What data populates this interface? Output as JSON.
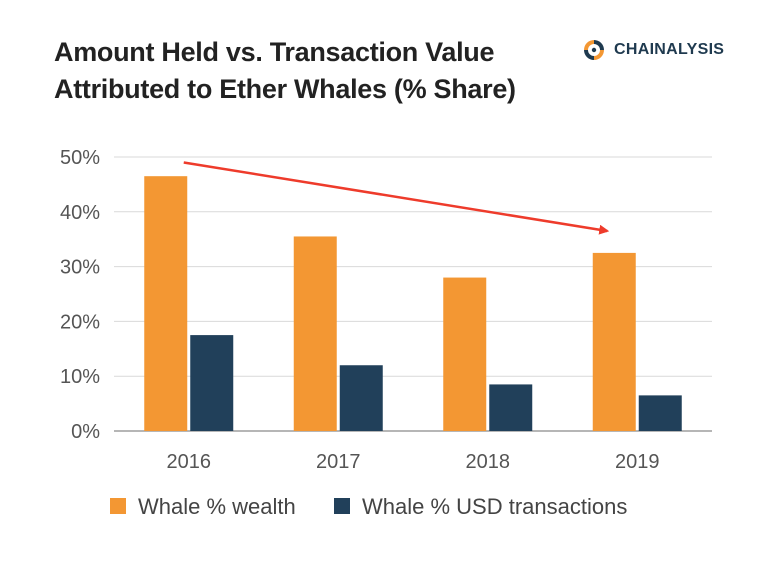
{
  "header": {
    "title_line1": "Amount Held vs. Transaction Value",
    "title_line2": "Attributed to Ether Whales (% Share)"
  },
  "brand": {
    "name": "CHAINALYSIS",
    "icon": "chainalysis-logo-icon"
  },
  "colors": {
    "wealth": "#f39733",
    "usd": "#21405a",
    "arrow": "#ee3b2b",
    "grid": "#d9d9d9",
    "brand_orange": "#f39733",
    "brand_navy": "#1f3a4f"
  },
  "chart_data": {
    "type": "bar",
    "title": "Amount Held vs. Transaction Value Attributed to Ether Whales (% Share)",
    "categories": [
      "2016",
      "2017",
      "2018",
      "2019"
    ],
    "series": [
      {
        "name": "Whale % wealth",
        "values": [
          46.5,
          35.5,
          28,
          32.5
        ]
      },
      {
        "name": "Whale % USD transactions",
        "values": [
          17.5,
          12,
          8.5,
          6.5
        ]
      }
    ],
    "ylim": [
      0,
      50
    ],
    "yticks": [
      0,
      10,
      20,
      30,
      40,
      50
    ],
    "ytick_labels": [
      "0%",
      "10%",
      "20%",
      "30%",
      "40%",
      "50%"
    ],
    "xlabel": "",
    "ylabel": "",
    "grid": true,
    "legend_position": "bottom",
    "annotation": {
      "type": "arrow",
      "from": {
        "x": "2016",
        "y": 49
      },
      "to": {
        "x": "2019",
        "y": 36.5
      }
    }
  }
}
